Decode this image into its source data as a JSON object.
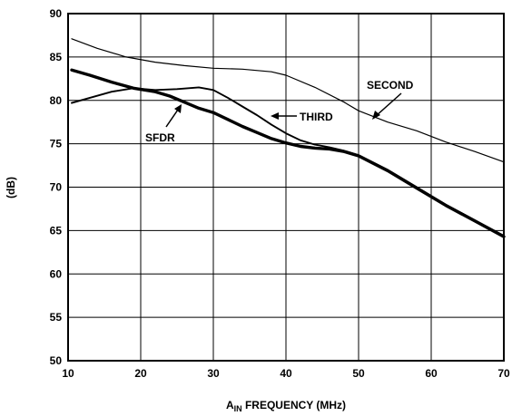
{
  "chart_data": {
    "type": "line",
    "xlabel": "A",
    "xlabel_sub": "IN",
    "xlabel_rest": " FREQUENCY (MHz)",
    "ylabel": "(dB)",
    "xlim": [
      10,
      70
    ],
    "ylim": [
      50,
      90
    ],
    "x_ticks": [
      10,
      20,
      30,
      40,
      50,
      60,
      70
    ],
    "y_ticks": [
      50,
      55,
      60,
      65,
      70,
      75,
      80,
      85,
      90
    ],
    "grid": true,
    "series": [
      {
        "name": "SECOND",
        "line": "thin",
        "points": [
          [
            10.5,
            87.1
          ],
          [
            14,
            86.0
          ],
          [
            18,
            85.0
          ],
          [
            22,
            84.4
          ],
          [
            26,
            84.0
          ],
          [
            30,
            83.7
          ],
          [
            34,
            83.6
          ],
          [
            38,
            83.3
          ],
          [
            40,
            82.9
          ],
          [
            44,
            81.5
          ],
          [
            48,
            79.8
          ],
          [
            50,
            78.8
          ],
          [
            54,
            77.5
          ],
          [
            58,
            76.5
          ],
          [
            62,
            75.2
          ],
          [
            66,
            74.1
          ],
          [
            70,
            72.9
          ]
        ]
      },
      {
        "name": "THIRD",
        "line": "medium",
        "points": [
          [
            10.5,
            79.7
          ],
          [
            13,
            80.3
          ],
          [
            16,
            81.0
          ],
          [
            19,
            81.4
          ],
          [
            22,
            81.2
          ],
          [
            25,
            81.3
          ],
          [
            28,
            81.5
          ],
          [
            30,
            81.2
          ],
          [
            32,
            80.3
          ],
          [
            34,
            79.3
          ],
          [
            36,
            78.3
          ],
          [
            38,
            77.2
          ],
          [
            40,
            76.2
          ],
          [
            42,
            75.4
          ],
          [
            44,
            74.9
          ],
          [
            46,
            74.6
          ],
          [
            48,
            74.2
          ],
          [
            50,
            73.7
          ],
          [
            54,
            72.0
          ],
          [
            58,
            70.0
          ],
          [
            62,
            68.0
          ],
          [
            66,
            66.2
          ],
          [
            70,
            64.4
          ]
        ]
      },
      {
        "name": "SFDR",
        "line": "thick",
        "points": [
          [
            10.5,
            83.5
          ],
          [
            13,
            82.9
          ],
          [
            16,
            82.1
          ],
          [
            19,
            81.4
          ],
          [
            22,
            81.0
          ],
          [
            24,
            80.5
          ],
          [
            26,
            79.8
          ],
          [
            28,
            79.1
          ],
          [
            30,
            78.6
          ],
          [
            32,
            77.8
          ],
          [
            34,
            77.0
          ],
          [
            36,
            76.3
          ],
          [
            38,
            75.6
          ],
          [
            40,
            75.1
          ],
          [
            42,
            74.7
          ],
          [
            44,
            74.5
          ],
          [
            46,
            74.4
          ],
          [
            48,
            74.1
          ],
          [
            50,
            73.6
          ],
          [
            54,
            71.9
          ],
          [
            58,
            69.9
          ],
          [
            62,
            67.9
          ],
          [
            66,
            66.1
          ],
          [
            70,
            64.3
          ]
        ]
      }
    ],
    "annotations": [
      {
        "label": "SECOND"
      },
      {
        "label": "THIRD"
      },
      {
        "label": "SFDR"
      }
    ]
  }
}
